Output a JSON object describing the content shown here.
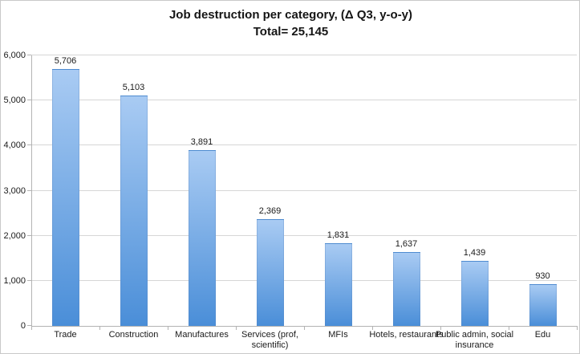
{
  "title": {
    "line1": "Job destruction per category, (Δ Q3, y-o-y)",
    "line2": "Total= 25,145"
  },
  "chart_data": {
    "type": "bar",
    "title": "Job destruction per category, (Δ Q3, y-o-y) Total= 25,145",
    "total": 25145,
    "categories": [
      "Trade",
      "Construction",
      "Manufactures",
      "Services (prof, scientific)",
      "MFIs",
      "Hotels, restaurants",
      "Public admin, social insurance",
      "Edu"
    ],
    "xtick_label_lines": [
      [
        "Trade"
      ],
      [
        "Construction"
      ],
      [
        "Manufactures"
      ],
      [
        "Services (prof,",
        "scientific)"
      ],
      [
        "MFIs"
      ],
      [
        "Hotels, restaurants"
      ],
      [
        "Public admin, social",
        "insurance"
      ],
      [
        "Edu"
      ]
    ],
    "values": [
      5706,
      5103,
      3891,
      2369,
      1831,
      1637,
      1439,
      930
    ],
    "value_labels": [
      "5,706",
      "5,103",
      "3,891",
      "2,369",
      "1,831",
      "1,637",
      "1,439",
      "930"
    ],
    "xlabel": "",
    "ylabel": "",
    "ylim": [
      0,
      6000
    ],
    "yticks": [
      0,
      1000,
      2000,
      3000,
      4000,
      5000,
      6000
    ],
    "ytick_labels": [
      "0",
      "1,000",
      "2,000",
      "3,000",
      "4,000",
      "5,000",
      "6,000"
    ],
    "grid": true,
    "legend": false
  },
  "colors": {
    "bar_gradient_top": "#a9cbf3",
    "bar_gradient_bottom": "#4a8ed8",
    "gridline": "#d6d6d6",
    "axis": "#b3b3b3",
    "text": "#1a1a1a",
    "frame_border": "#c9c9c9",
    "background": "#ffffff"
  }
}
